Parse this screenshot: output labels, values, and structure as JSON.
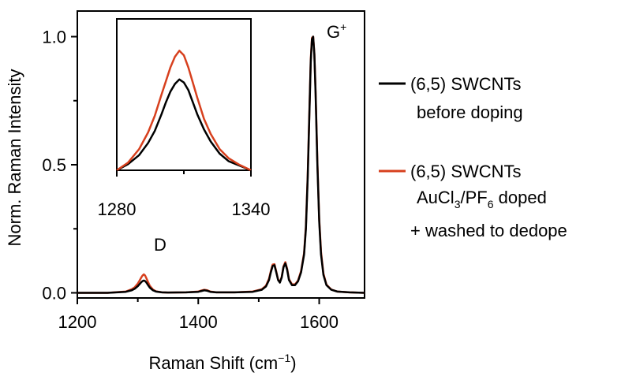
{
  "chart_data": {
    "type": "line",
    "xlabel": "Raman Shift (cm",
    "xlabel_sup": "−1",
    "xlabel_end": ")",
    "ylabel": "Norm. Raman Intensity",
    "xlim": [
      1200,
      1675
    ],
    "ylim": [
      -0.02,
      1.1
    ],
    "xticks": [
      1200,
      1400,
      1600
    ],
    "yticks": [
      0.0,
      0.5,
      1.0
    ],
    "xtick_labels": [
      "1200",
      "1400",
      "1600"
    ],
    "ytick_labels": [
      "0.0",
      "0.5",
      "1.0"
    ],
    "annotations": [
      {
        "text": "D",
        "x": 1310,
        "y": 0.11
      },
      {
        "text": "G",
        "sup": "+",
        "x": 1600,
        "y": 1.0
      }
    ],
    "series": [
      {
        "name_line1": "(6,5) SWCNTs",
        "name_line2": "before doping",
        "color": "#000000",
        "x": [
          1200,
          1250,
          1280,
          1290,
          1295,
          1300,
          1303,
          1306,
          1308,
          1310,
          1312,
          1314,
          1317,
          1320,
          1325,
          1330,
          1340,
          1350,
          1380,
          1400,
          1405,
          1410,
          1415,
          1420,
          1430,
          1460,
          1490,
          1505,
          1512,
          1517,
          1520,
          1523,
          1526,
          1529,
          1532,
          1535,
          1538,
          1541,
          1544,
          1547,
          1550,
          1555,
          1560,
          1565,
          1570,
          1575,
          1578,
          1581,
          1584,
          1586,
          1588,
          1590,
          1592,
          1594,
          1597,
          1600,
          1603,
          1607,
          1612,
          1620,
          1630,
          1650,
          1675
        ],
        "y": [
          0.0,
          0.0,
          0.004,
          0.01,
          0.016,
          0.026,
          0.034,
          0.042,
          0.046,
          0.048,
          0.046,
          0.041,
          0.03,
          0.02,
          0.01,
          0.005,
          0.002,
          0.001,
          0.002,
          0.004,
          0.007,
          0.01,
          0.008,
          0.004,
          0.002,
          0.002,
          0.004,
          0.012,
          0.025,
          0.05,
          0.08,
          0.105,
          0.108,
          0.08,
          0.05,
          0.04,
          0.06,
          0.1,
          0.115,
          0.09,
          0.05,
          0.03,
          0.03,
          0.045,
          0.08,
          0.15,
          0.25,
          0.45,
          0.72,
          0.9,
          0.99,
          1.0,
          0.93,
          0.78,
          0.5,
          0.28,
          0.15,
          0.07,
          0.03,
          0.012,
          0.005,
          0.002,
          0.0
        ]
      },
      {
        "name_line1": "(6,5) SWCNTs",
        "name_line2_prefix": "AuCl",
        "name_line2_sub1": "3",
        "name_line2_mid": "/PF",
        "name_line2_sub2": "6",
        "name_line2_suffix": " doped",
        "name_line3": "+ washed to dedope",
        "color": "#d7401e",
        "x": [
          1200,
          1250,
          1280,
          1290,
          1295,
          1300,
          1303,
          1306,
          1308,
          1310,
          1312,
          1314,
          1317,
          1320,
          1325,
          1330,
          1340,
          1350,
          1380,
          1400,
          1405,
          1410,
          1415,
          1420,
          1430,
          1460,
          1490,
          1505,
          1512,
          1517,
          1520,
          1523,
          1526,
          1529,
          1532,
          1535,
          1538,
          1541,
          1544,
          1547,
          1550,
          1555,
          1560,
          1565,
          1570,
          1575,
          1578,
          1581,
          1584,
          1586,
          1588,
          1590,
          1592,
          1594,
          1597,
          1600,
          1603,
          1607,
          1612,
          1620,
          1630,
          1650,
          1675
        ],
        "y": [
          0.0,
          0.0,
          0.005,
          0.014,
          0.022,
          0.036,
          0.048,
          0.061,
          0.068,
          0.072,
          0.068,
          0.058,
          0.042,
          0.027,
          0.013,
          0.006,
          0.002,
          0.001,
          0.002,
          0.005,
          0.009,
          0.012,
          0.01,
          0.005,
          0.002,
          0.002,
          0.005,
          0.014,
          0.028,
          0.055,
          0.085,
          0.11,
          0.112,
          0.083,
          0.052,
          0.042,
          0.062,
          0.104,
          0.12,
          0.094,
          0.054,
          0.033,
          0.033,
          0.048,
          0.085,
          0.155,
          0.26,
          0.46,
          0.73,
          0.91,
          0.995,
          1.0,
          0.935,
          0.79,
          0.51,
          0.29,
          0.16,
          0.075,
          0.032,
          0.013,
          0.005,
          0.002,
          0.0
        ]
      }
    ],
    "inset": {
      "xlim": [
        1280,
        1340
      ],
      "ylim": [
        0.0,
        1.0
      ],
      "xticks": [
        1280,
        1340
      ],
      "xtick_labels": [
        "1280",
        "1340"
      ],
      "series": [
        {
          "color": "#000000",
          "x": [
            1280,
            1285,
            1290,
            1294,
            1297,
            1300,
            1302,
            1304,
            1306,
            1308,
            1310,
            1312,
            1314,
            1316,
            1319,
            1322,
            1326,
            1330,
            1335,
            1340
          ],
          "y": [
            0.0,
            0.04,
            0.1,
            0.18,
            0.26,
            0.37,
            0.45,
            0.52,
            0.57,
            0.6,
            0.58,
            0.53,
            0.45,
            0.37,
            0.27,
            0.19,
            0.11,
            0.06,
            0.03,
            0.0
          ]
        },
        {
          "color": "#d7401e",
          "x": [
            1280,
            1285,
            1290,
            1294,
            1297,
            1300,
            1302,
            1304,
            1306,
            1308,
            1310,
            1312,
            1314,
            1316,
            1319,
            1322,
            1326,
            1330,
            1335,
            1340
          ],
          "y": [
            0.0,
            0.05,
            0.14,
            0.25,
            0.36,
            0.5,
            0.59,
            0.68,
            0.75,
            0.79,
            0.76,
            0.68,
            0.58,
            0.48,
            0.34,
            0.24,
            0.14,
            0.08,
            0.035,
            0.0
          ]
        }
      ]
    }
  }
}
